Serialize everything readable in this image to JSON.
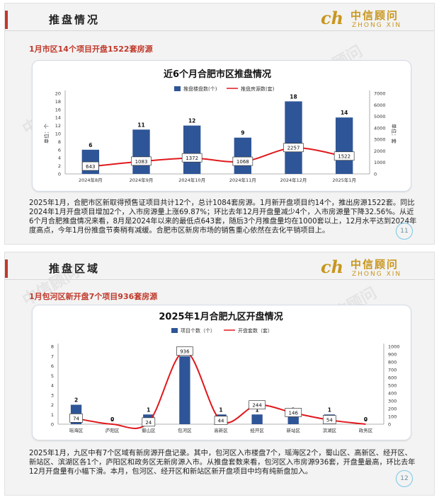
{
  "brand": {
    "mark": "ch",
    "name_cn": "中信顾问",
    "name_en": "ZHONG XIN",
    "watermark": "中信顾问"
  },
  "slides": [
    {
      "header_title": "推盘情况",
      "subheading": "1月市区14个项目开盘1522套房源",
      "page_number": "11",
      "body_text": "2025年1月，合肥市区新取得预售证项目共计12个，总计1084套房源。1月新开盘项目约14个，推出房源1522套。同比2024年1月开盘项目增加2个，入市房源量上涨69.87%；环比去年12月开盘量减少4个，入市房源量下降32.56%。从近6个月合肥推盘情况来看，8月是2024年以来的最低点643套，随后3个月推盘量均在1000套以上，12月水平达到2024年度高点，今年1月份推盘节奏稍有减缓。合肥市区新房市场的销售重心依然在去化平销项目上。"
    },
    {
      "header_title": "推盘区域",
      "subheading": "1月包河区新开盘7个项目936套房源",
      "page_number": "12",
      "body_text": "2025年1月，九区中有7个区域有新房源开盘记录。其中，包河区入市楼盘7个，瑶海区2个，蜀山区、高新区、经开区、新站区、滨湖区各1个，庐阳区和政务区无新房源入市。从推盘套数来看，包河区入市房源936套，开盘量最高，环比去年12月开盘量有小幅下滑。本月，包河区、经开区和新站区新开盘项目中均有纯新盘加入。"
    }
  ],
  "chart_data": [
    {
      "type": "bar",
      "title": "近6个月合肥市区推盘情况",
      "categories": [
        "2024年8月",
        "2024年9月",
        "2024年10月",
        "2024年11月",
        "2024年12月",
        "2025年1月"
      ],
      "series": [
        {
          "name": "推盘楼盘数(个)",
          "type": "bar",
          "axis": "left",
          "values": [
            6,
            11,
            12,
            9,
            18,
            14
          ]
        },
        {
          "name": "推盘房源数(套)",
          "type": "line",
          "axis": "right",
          "values": [
            643,
            1083,
            1372,
            1068,
            2257,
            1522
          ]
        }
      ],
      "ylabel_left": "单位：个",
      "ylabel_right": "单位：套",
      "ylim_left": [
        0,
        20
      ],
      "yticks_left": [
        0,
        2,
        4,
        6,
        8,
        10,
        12,
        14,
        16,
        18,
        20
      ],
      "ylim_right": [
        0,
        7000
      ],
      "yticks_right": [
        0,
        1000,
        2000,
        3000,
        4000,
        5000,
        6000,
        7000
      ],
      "legend_position": "top",
      "colors": {
        "bar": "#2e5597",
        "line": "#e0191d"
      },
      "grid": false
    },
    {
      "type": "bar",
      "title": "2025年1月合肥九区开盘情况",
      "categories": [
        "瑶海区",
        "庐阳区",
        "蜀山区",
        "包河区",
        "高新区",
        "经开区",
        "新站区",
        "滨湖区",
        "政务区"
      ],
      "series": [
        {
          "name": "项目个数（个）",
          "type": "bar",
          "axis": "left",
          "values": [
            2,
            0,
            1,
            7,
            1,
            1,
            1,
            1,
            0
          ]
        },
        {
          "name": "开盘套数（套）",
          "type": "line",
          "axis": "right",
          "values": [
            74,
            0,
            24,
            936,
            44,
            244,
            146,
            54,
            0
          ]
        }
      ],
      "ylim_left": [
        0,
        8
      ],
      "yticks_left": [
        0,
        1,
        2,
        3,
        4,
        5,
        6,
        7,
        8
      ],
      "ylim_right": [
        0,
        1000
      ],
      "yticks_right": [
        0,
        100,
        200,
        300,
        400,
        500,
        600,
        700,
        800,
        900,
        1000
      ],
      "legend_position": "top",
      "colors": {
        "bar": "#2e5597",
        "line": "#e0191d"
      },
      "grid": false
    }
  ]
}
